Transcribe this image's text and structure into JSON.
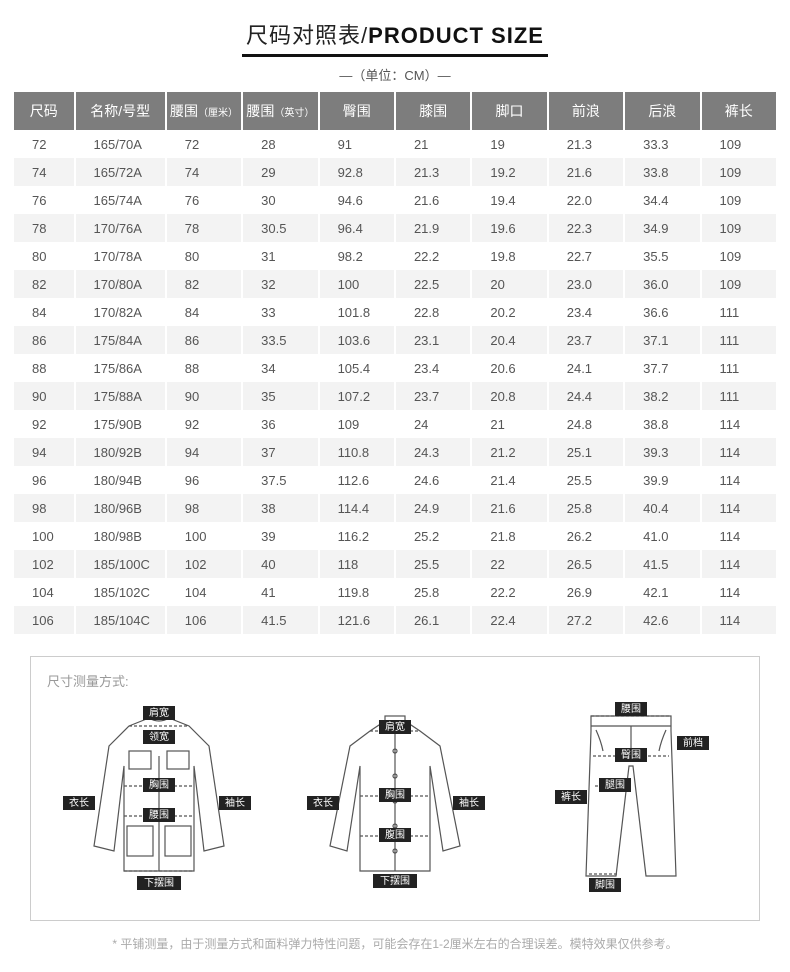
{
  "title_cn": "尺码对照表/",
  "title_en": "PRODUCT SIZE",
  "unit_label": "—（单位：CM）—",
  "headers": [
    "尺码",
    "名称/号型",
    "腰围（厘米）",
    "腰围（英寸）",
    "臀围",
    "膝围",
    "脚口",
    "前浪",
    "后浪",
    "裤长"
  ],
  "rows": [
    [
      "72",
      "165/70A",
      "72",
      "28",
      "91",
      "21",
      "19",
      "21.3",
      "33.3",
      "109"
    ],
    [
      "74",
      "165/72A",
      "74",
      "29",
      "92.8",
      "21.3",
      "19.2",
      "21.6",
      "33.8",
      "109"
    ],
    [
      "76",
      "165/74A",
      "76",
      "30",
      "94.6",
      "21.6",
      "19.4",
      "22.0",
      "34.4",
      "109"
    ],
    [
      "78",
      "170/76A",
      "78",
      "30.5",
      "96.4",
      "21.9",
      "19.6",
      "22.3",
      "34.9",
      "109"
    ],
    [
      "80",
      "170/78A",
      "80",
      "31",
      "98.2",
      "22.2",
      "19.8",
      "22.7",
      "35.5",
      "109"
    ],
    [
      "82",
      "170/80A",
      "82",
      "32",
      "100",
      "22.5",
      "20",
      "23.0",
      "36.0",
      "109"
    ],
    [
      "84",
      "170/82A",
      "84",
      "33",
      "101.8",
      "22.8",
      "20.2",
      "23.4",
      "36.6",
      "111"
    ],
    [
      "86",
      "175/84A",
      "86",
      "33.5",
      "103.6",
      "23.1",
      "20.4",
      "23.7",
      "37.1",
      "111"
    ],
    [
      "88",
      "175/86A",
      "88",
      "34",
      "105.4",
      "23.4",
      "20.6",
      "24.1",
      "37.7",
      "111"
    ],
    [
      "90",
      "175/88A",
      "90",
      "35",
      "107.2",
      "23.7",
      "20.8",
      "24.4",
      "38.2",
      "111"
    ],
    [
      "92",
      "175/90B",
      "92",
      "36",
      "109",
      "24",
      "21",
      "24.8",
      "38.8",
      "114"
    ],
    [
      "94",
      "180/92B",
      "94",
      "37",
      "110.8",
      "24.3",
      "21.2",
      "25.1",
      "39.3",
      "114"
    ],
    [
      "96",
      "180/94B",
      "96",
      "37.5",
      "112.6",
      "24.6",
      "21.4",
      "25.5",
      "39.9",
      "114"
    ],
    [
      "98",
      "180/96B",
      "98",
      "38",
      "114.4",
      "24.9",
      "21.6",
      "25.8",
      "40.4",
      "114"
    ],
    [
      "100",
      "180/98B",
      "100",
      "39",
      "116.2",
      "25.2",
      "21.8",
      "26.2",
      "41.0",
      "114"
    ],
    [
      "102",
      "185/100C",
      "102",
      "40",
      "118",
      "25.5",
      "22",
      "26.5",
      "41.5",
      "114"
    ],
    [
      "104",
      "185/102C",
      "104",
      "41",
      "119.8",
      "25.8",
      "22.2",
      "26.9",
      "42.1",
      "114"
    ],
    [
      "106",
      "185/104C",
      "106",
      "41.5",
      "121.6",
      "26.1",
      "22.4",
      "27.2",
      "42.6",
      "114"
    ]
  ],
  "diagram_title": "尺寸测量方式:",
  "labels": {
    "jacket": {
      "shoulder": "肩宽",
      "collar": "领宽",
      "chest": "胸围",
      "length": "衣长",
      "waist": "腰围",
      "sleeve": "袖长",
      "hem": "下摆围"
    },
    "shirt": {
      "shoulder": "肩宽",
      "chest": "胸围",
      "length": "衣长",
      "sleeve": "袖长",
      "belly": "腹围",
      "hem": "下摆围"
    },
    "pants": {
      "waist": "腰围",
      "front": "前档",
      "hip": "臀围",
      "thigh": "腿围",
      "length": "裤长",
      "leg": "脚围"
    }
  },
  "note": "*  平铺测量，由于测量方式和面料弹力特性问题，可能会存在1-2厘米左右的合理误差。模特效果仅供参考。"
}
